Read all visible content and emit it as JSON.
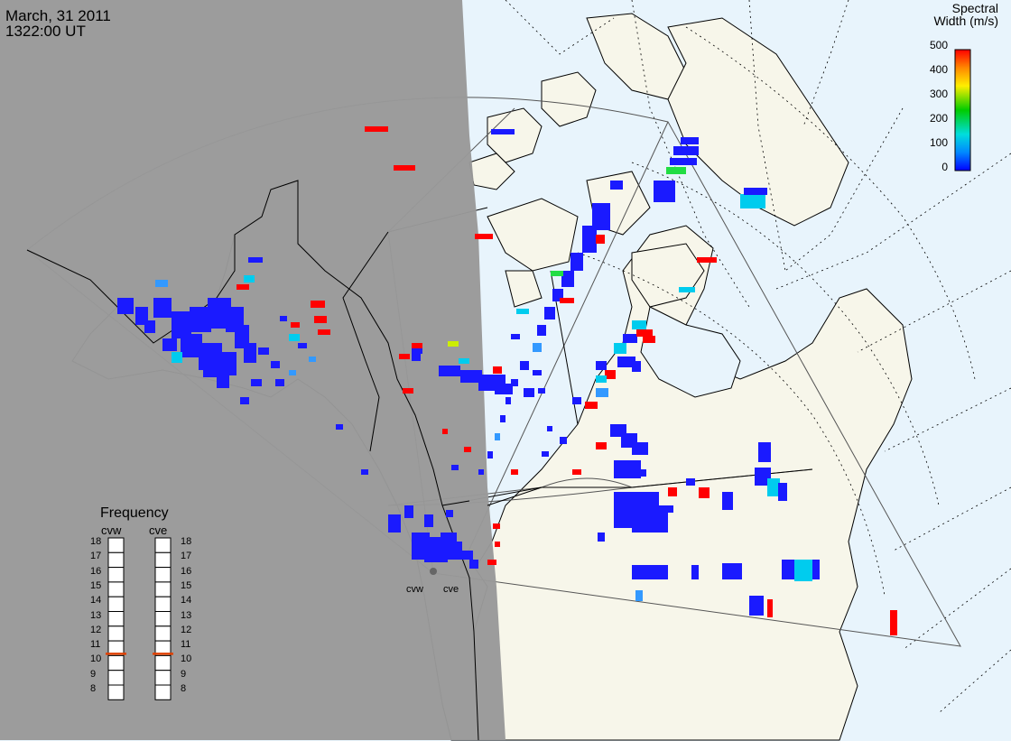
{
  "header": {
    "date": "March, 31 2011",
    "time": "1322:00 UT"
  },
  "colorbar": {
    "title_line1": "Spectral",
    "title_line2": "Width (m/s)",
    "ticks": [
      "500",
      "400",
      "300",
      "200",
      "100",
      "0"
    ],
    "colors": [
      "#ff0000",
      "#ff8800",
      "#ffee00",
      "#00cc00",
      "#00dddd",
      "#0088ff",
      "#0000ff"
    ]
  },
  "frequency_panel": {
    "title": "Frequency",
    "radars": [
      "cvw",
      "cve"
    ],
    "scale": [
      "18",
      "17",
      "16",
      "15",
      "14",
      "13",
      "12",
      "11",
      "10",
      "9",
      "8"
    ],
    "markers": [
      "11",
      "11"
    ],
    "marker_color": "#e04000"
  },
  "radar_sites": {
    "west_label": "cvw",
    "east_label": "cve"
  },
  "map_colors": {
    "night": "#999999",
    "ocean": "#e8f4fc",
    "land": "#f7f6ea",
    "grid": "#000000"
  }
}
